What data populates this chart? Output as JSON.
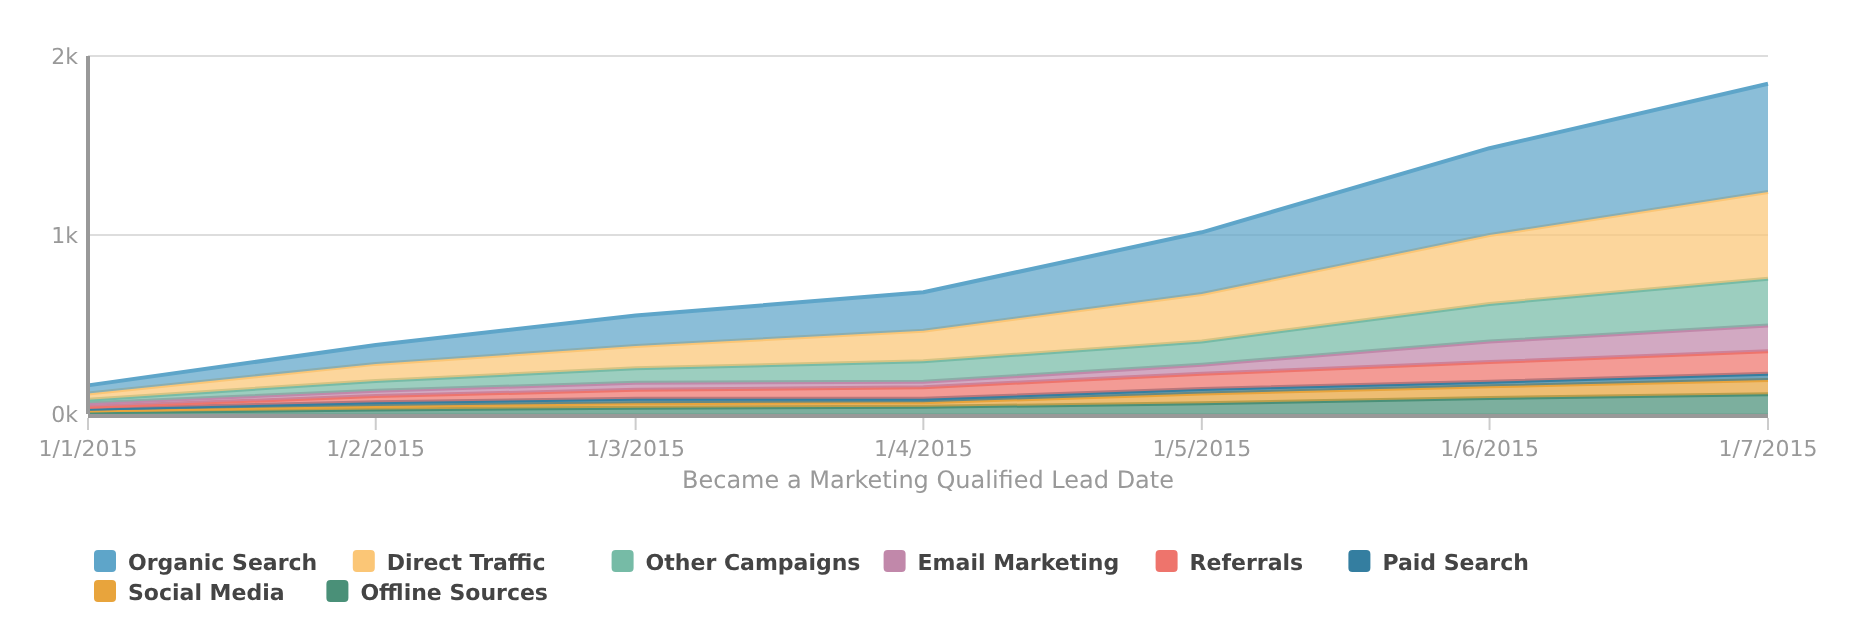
{
  "chart_data": {
    "type": "area",
    "stacked": true,
    "xlabel": "Became a Marketing Qualified Lead Date",
    "x": [
      "2015-01-01",
      "2015-02-01",
      "2015-03-01",
      "2015-04-01",
      "2015-05-01",
      "2015-06-01",
      "2015-07-01"
    ],
    "xlim": [
      "2015-01-01",
      "2015-07-01"
    ],
    "xticks": [
      {
        "value": "2015-01-01",
        "label": "1/1/2015"
      },
      {
        "value": "2015-02-01",
        "label": "1/2/2015"
      },
      {
        "value": "2015-03-01",
        "label": "1/3/2015"
      },
      {
        "value": "2015-04-01",
        "label": "1/4/2015"
      },
      {
        "value": "2015-05-01",
        "label": "1/5/2015"
      },
      {
        "value": "2015-06-01",
        "label": "1/6/2015"
      },
      {
        "value": "2015-07-01",
        "label": "1/7/2015"
      }
    ],
    "ylim": [
      0,
      2000
    ],
    "yticks": [
      {
        "value": 0,
        "label": "0k"
      },
      {
        "value": 1000,
        "label": "1k"
      },
      {
        "value": 2000,
        "label": "2k"
      }
    ],
    "grid": "y",
    "legend": "bottom",
    "series": [
      {
        "name": "Offline Sources",
        "color": "#4a9078",
        "values": [
          10,
          25,
          35,
          40,
          60,
          90,
          110
        ]
      },
      {
        "name": "Social Media",
        "color": "#e8a43c",
        "values": [
          10,
          20,
          25,
          25,
          55,
          65,
          80
        ]
      },
      {
        "name": "Paid Search",
        "color": "#347ea0",
        "values": [
          10,
          20,
          25,
          20,
          25,
          25,
          35
        ]
      },
      {
        "name": "Referrals",
        "color": "#ee746c",
        "values": [
          10,
          35,
          50,
          65,
          85,
          110,
          125
        ]
      },
      {
        "name": "Email Marketing",
        "color": "#c188aa",
        "values": [
          20,
          30,
          40,
          30,
          50,
          115,
          145
        ]
      },
      {
        "name": "Other Campaigns",
        "color": "#76bba6",
        "values": [
          20,
          55,
          80,
          115,
          130,
          210,
          260
        ]
      },
      {
        "name": "Direct Traffic",
        "color": "#fbc676",
        "values": [
          35,
          95,
          125,
          170,
          265,
          385,
          485
        ]
      },
      {
        "name": "Organic Search",
        "color": "#5ea5c9",
        "values": [
          45,
          105,
          170,
          215,
          345,
          485,
          605
        ]
      }
    ]
  }
}
